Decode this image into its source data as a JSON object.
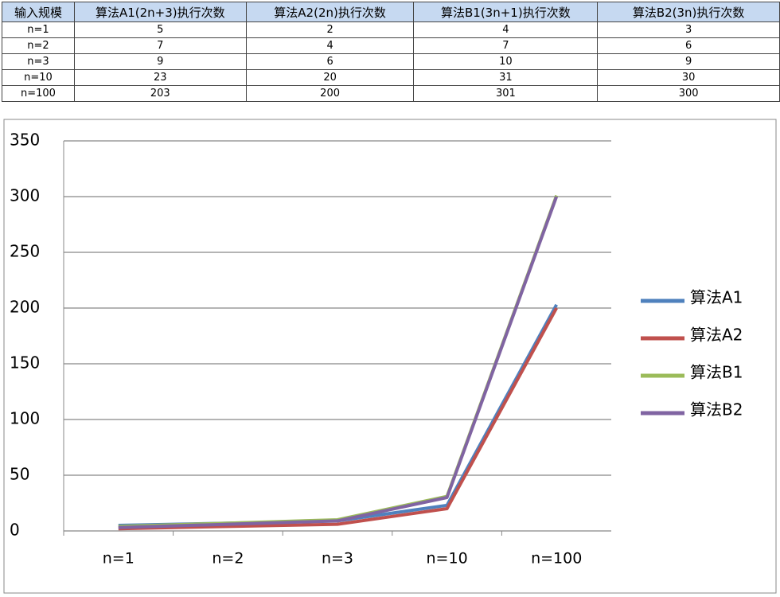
{
  "table": {
    "header": [
      "输入规模",
      "算法A1(2n+3)执行次数",
      "算法A2(2n)执行次数",
      "算法B1(3n+1)执行次数",
      "算法B2(3n)执行次数"
    ],
    "rows": [
      [
        "n=1",
        "5",
        "2",
        "4",
        "3"
      ],
      [
        "n=2",
        "7",
        "4",
        "7",
        "6"
      ],
      [
        "n=3",
        "9",
        "6",
        "10",
        "9"
      ],
      [
        "n=10",
        "23",
        "20",
        "31",
        "30"
      ],
      [
        "n=100",
        "203",
        "200",
        "301",
        "300"
      ]
    ]
  },
  "chart_data": {
    "type": "line",
    "categories": [
      "n=1",
      "n=2",
      "n=3",
      "n=10",
      "n=100"
    ],
    "series": [
      {
        "name": "算法A1",
        "color": "#4f81bd",
        "values": [
          5,
          7,
          9,
          23,
          203
        ]
      },
      {
        "name": "算法A2",
        "color": "#c0504d",
        "values": [
          2,
          4,
          6,
          20,
          200
        ]
      },
      {
        "name": "算法B1",
        "color": "#9bbb59",
        "values": [
          4,
          7,
          10,
          31,
          301
        ]
      },
      {
        "name": "算法B2",
        "color": "#8064a2",
        "values": [
          3,
          6,
          9,
          30,
          300
        ]
      }
    ],
    "ylim": [
      0,
      350
    ],
    "yticks": [
      0,
      50,
      100,
      150,
      200,
      250,
      300,
      350
    ],
    "grid": true,
    "legend": "right"
  }
}
